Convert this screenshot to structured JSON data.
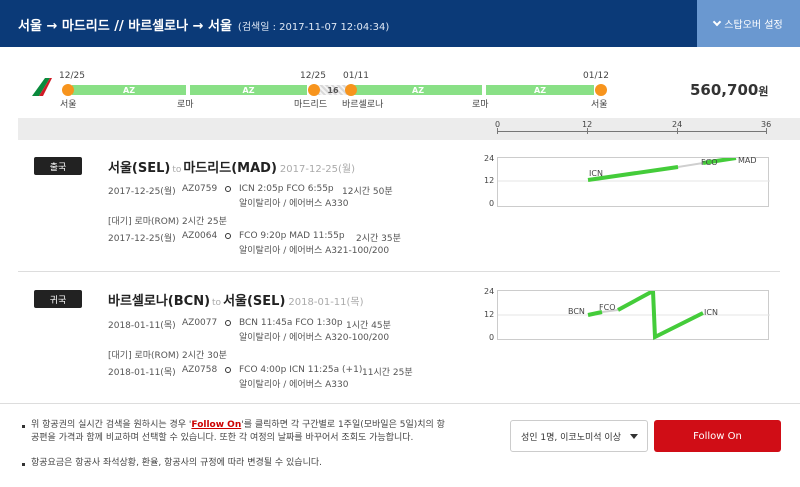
{
  "header": {
    "route": "서울 → 마드리드 // 바르셀로나 → 서울",
    "search_date": "(검색일 : 2017-11-07 12:04:34)",
    "stopover_button": "스탑오버 설정"
  },
  "timeline": {
    "dates": [
      "12/25",
      "12/25",
      "01/11",
      "01/12"
    ],
    "cities": [
      "서울",
      "로마",
      "마드리드",
      "바르셀로나",
      "로마",
      "서울"
    ],
    "segment_labels": [
      "AZ",
      "AZ",
      "AZ",
      "AZ"
    ],
    "gap_label": "16",
    "price": "560,700",
    "price_unit": "원"
  },
  "scale": {
    "labels": [
      "0",
      "12",
      "24",
      "36"
    ]
  },
  "legs": [
    {
      "badge": "출국",
      "title_from": "서울(SEL)",
      "to_word": "to",
      "title_to": "마드리드(MAD)",
      "title_date": "2017-12-25(월)",
      "flights": [
        {
          "date": "2017-12-25(월)",
          "flight_no": "AZ0759",
          "times": "ICN 2:05p FCO 6:55p",
          "duration": "12시간 50분",
          "airline": "알이탈리아 / 에어버스 A330"
        },
        {
          "date": "2017-12-25(월)",
          "flight_no": "AZ0064",
          "times": "FCO 9:20p MAD 11:55p",
          "duration": "2시간 35분",
          "airline": "알이탈리아 / 에어버스 A321-100/200"
        }
      ],
      "layover": "[대기] 로마(ROM)    2시간 25분",
      "chart": {
        "y_ticks": [
          "24",
          "12",
          "0"
        ],
        "points": [
          "ICN",
          "FCO",
          "MAD"
        ]
      }
    },
    {
      "badge": "귀국",
      "title_from": "바르셀로나(BCN)",
      "to_word": "to",
      "title_to": "서울(SEL)",
      "title_date": "2018-01-11(목)",
      "flights": [
        {
          "date": "2018-01-11(목)",
          "flight_no": "AZ0077",
          "times": "BCN 11:45a FCO 1:30p",
          "duration": "1시간 45분",
          "airline": "알이탈리아 / 에어버스 A320-100/200"
        },
        {
          "date": "2018-01-11(목)",
          "flight_no": "AZ0758",
          "times": "FCO 4:00p ICN 11:25a (+1)",
          "duration": "11시간 25분",
          "airline": "알이탈리아 / 에어버스 A330"
        }
      ],
      "layover": "[대기] 로마(ROM)    2시간 30분",
      "chart": {
        "y_ticks": [
          "24",
          "12",
          "0"
        ],
        "points": [
          "BCN",
          "FCO",
          "ICN"
        ]
      }
    }
  ],
  "footer": {
    "note1_pre": "위 항공권의 실시간 검색을 원하시는 경우 '",
    "note1_link": "Follow On",
    "note1_post": "'를 클릭하면 각 구간별로 1주일(모바일은 5일)치의 항공편을 가격과 함께 비교하며 선택할 수 있습니다. 또한 각 여정의 날짜를 바꾸어서 조회도 가능합니다.",
    "note2": "항공요금은 항공사 좌석상황, 환율, 항공사의 규정에 따라 변경될 수 있습니다.",
    "passenger_select": "성인 1명, 이코노미석 이상",
    "follow_button": "Follow On"
  },
  "colors": {
    "header": "#0b3a78",
    "accent_button": "#6a98d0",
    "segment": "#89e086",
    "dot": "#f7941d",
    "follow": "#d00d16",
    "chart_line": "#44cc3a"
  }
}
